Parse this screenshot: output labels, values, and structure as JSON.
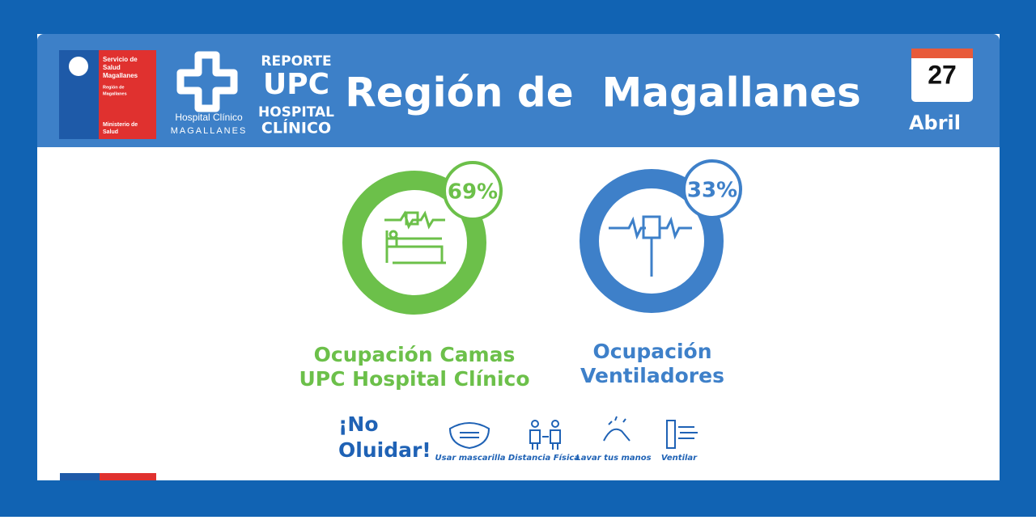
{
  "header": {
    "ministry_logo": {
      "service": [
        "Servicio de",
        "Salud",
        "Magallanes"
      ],
      "region": [
        "Región de",
        "Magallanes"
      ],
      "ministry": [
        "Ministerio de",
        "Salud"
      ]
    },
    "hospital_logo": {
      "name": "Hospital Clínico",
      "place": "MAGALLANES"
    },
    "report": [
      "REPORTE",
      "UPC",
      "HOSPITAL",
      "CLÍNICO"
    ],
    "title": "Región de  Magallanes",
    "date": {
      "day": "27",
      "month": "Abril"
    }
  },
  "indicators": [
    {
      "percent": "69%",
      "label": [
        "Ocupación Camas",
        "UPC Hospital Clínico"
      ]
    },
    {
      "percent": "33%",
      "label": [
        "Ocupación",
        "Ventiladores"
      ]
    }
  ],
  "reminder": {
    "title": [
      "¡No",
      "Oluidar!"
    ],
    "items": [
      "Usar mascarilla",
      "Distancia Física",
      "Lavar tus manos",
      "Ventilar"
    ]
  }
}
